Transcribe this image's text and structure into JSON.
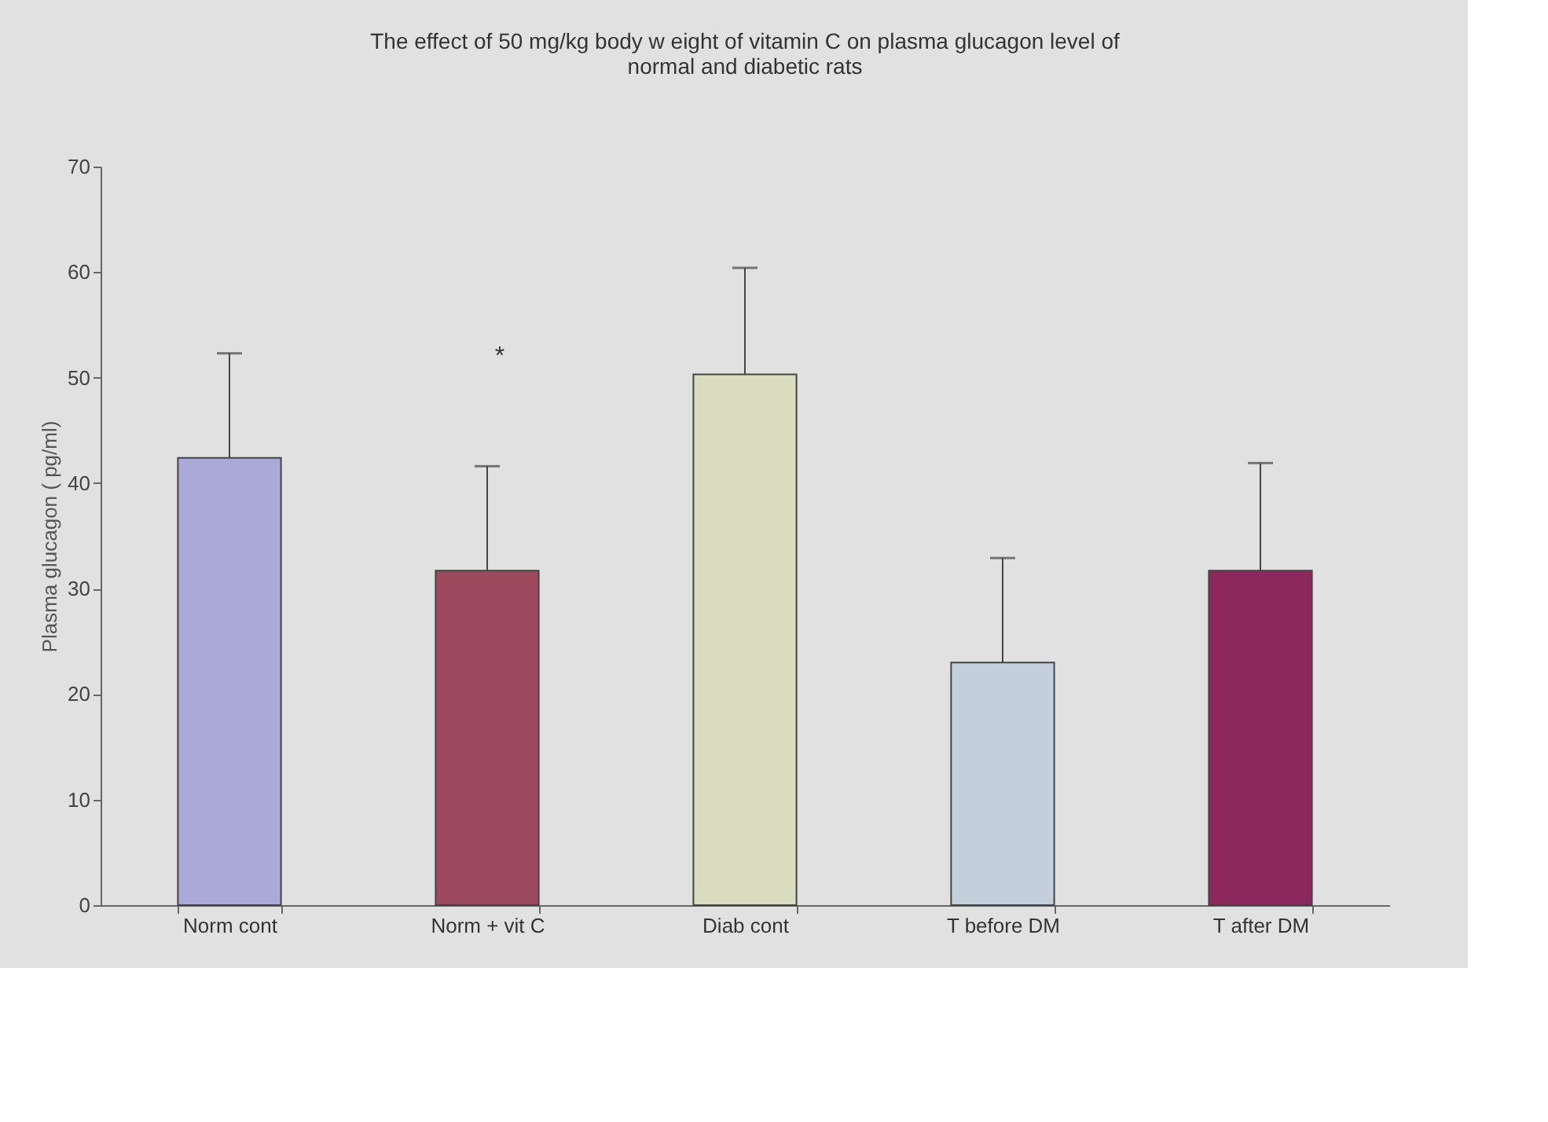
{
  "chart_data": {
    "type": "bar",
    "title": [
      "The effect of 50 mg/kg body w eight of vitamin C on plasma glucagon level of",
      "normal and diabetic rats"
    ],
    "ylabel": "Plasma glucagon ( pg/ml)",
    "categories": [
      "Norm cont",
      "Norm + vit C",
      "Diab cont",
      "T before DM",
      "T after DM"
    ],
    "values": [
      42.4,
      31.7,
      50.3,
      23.0,
      31.7
    ],
    "colors": [
      "#aaa9d8",
      "#9e4a5e",
      "#d9dcbe",
      "#c3d0dc",
      "#8c285c"
    ],
    "errors": [
      [
        42.4,
        52.3
      ],
      [
        31.7,
        41.6
      ],
      [
        50.3,
        60.4
      ],
      [
        23.0,
        32.9
      ],
      [
        31.7,
        41.9
      ]
    ],
    "annotations": [
      "*"
    ],
    "ylim": [
      0,
      70
    ],
    "yticks": [
      0,
      10,
      20,
      30,
      40,
      50,
      60,
      70
    ]
  }
}
